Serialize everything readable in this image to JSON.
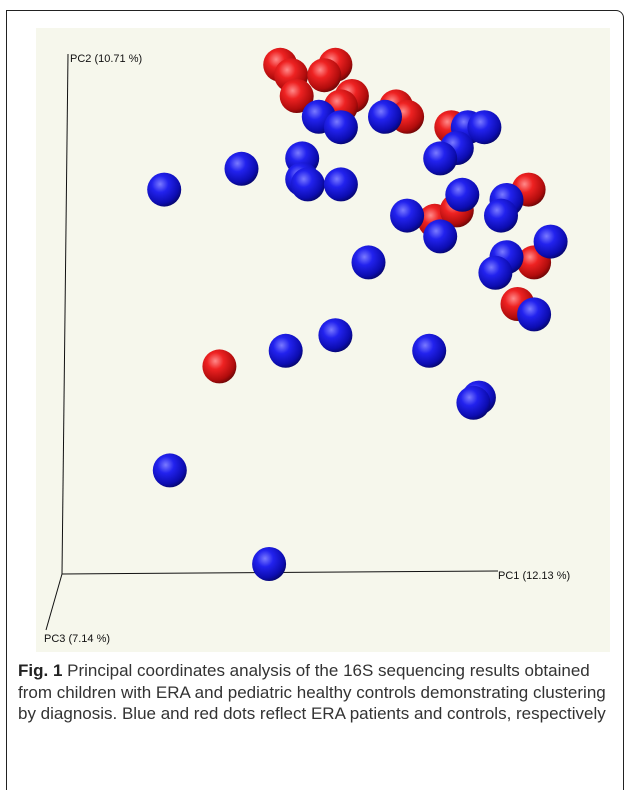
{
  "caption": {
    "label": "Fig. 1",
    "text": "Principal coordinates analysis of the 16S sequencing results obtained from children with ERA and pediatric healthy controls demonstrating clustering by diagnosis. Blue and red dots reflect ERA patients and controls, respectively"
  },
  "chart_data": {
    "type": "scatter",
    "dimensions": 3,
    "axes": {
      "x_label": "PC1 (12.13 %)",
      "y_label": "PC2 (10.71 %)",
      "z_label": "PC3 (7.14 %)"
    },
    "grid": false,
    "legend": "none",
    "colors": {
      "blue": "#1818e0",
      "red": "#e01818"
    },
    "points": [
      {
        "x": 0.66,
        "y": 0.96,
        "z": 0.0,
        "color": "red"
      },
      {
        "x": 0.7,
        "y": 0.94,
        "z": 0.0,
        "color": "red"
      },
      {
        "x": 0.72,
        "y": 0.9,
        "z": 0.0,
        "color": "red"
      },
      {
        "x": 0.86,
        "y": 0.96,
        "z": 0.0,
        "color": "red"
      },
      {
        "x": 0.82,
        "y": 0.94,
        "z": 0.0,
        "color": "red"
      },
      {
        "x": 0.92,
        "y": 0.9,
        "z": 0.0,
        "color": "red"
      },
      {
        "x": 0.88,
        "y": 0.88,
        "z": 0.0,
        "color": "red"
      },
      {
        "x": 1.08,
        "y": 0.88,
        "z": 0.0,
        "color": "red"
      },
      {
        "x": 1.12,
        "y": 0.86,
        "z": 0.0,
        "color": "red"
      },
      {
        "x": 1.28,
        "y": 0.84,
        "z": 0.0,
        "color": "red"
      },
      {
        "x": 1.56,
        "y": 0.72,
        "z": 0.0,
        "color": "red"
      },
      {
        "x": 1.22,
        "y": 0.66,
        "z": 0.0,
        "color": "red"
      },
      {
        "x": 1.3,
        "y": 0.68,
        "z": 0.0,
        "color": "red"
      },
      {
        "x": 1.58,
        "y": 0.58,
        "z": 0.0,
        "color": "red"
      },
      {
        "x": 1.52,
        "y": 0.5,
        "z": 0.0,
        "color": "red"
      },
      {
        "x": 0.44,
        "y": 0.38,
        "z": 0.0,
        "color": "red"
      },
      {
        "x": 0.8,
        "y": 0.86,
        "z": 0.0,
        "color": "blue"
      },
      {
        "x": 0.88,
        "y": 0.84,
        "z": 0.0,
        "color": "blue"
      },
      {
        "x": 1.04,
        "y": 0.86,
        "z": 0.0,
        "color": "blue"
      },
      {
        "x": 1.34,
        "y": 0.84,
        "z": 0.0,
        "color": "blue"
      },
      {
        "x": 1.4,
        "y": 0.84,
        "z": 0.0,
        "color": "blue"
      },
      {
        "x": 1.3,
        "y": 0.8,
        "z": 0.0,
        "color": "blue"
      },
      {
        "x": 1.24,
        "y": 0.78,
        "z": 0.0,
        "color": "blue"
      },
      {
        "x": 0.74,
        "y": 0.78,
        "z": 0.0,
        "color": "blue"
      },
      {
        "x": 0.52,
        "y": 0.76,
        "z": 0.0,
        "color": "blue"
      },
      {
        "x": 0.74,
        "y": 0.74,
        "z": 0.0,
        "color": "blue"
      },
      {
        "x": 0.76,
        "y": 0.73,
        "z": 0.0,
        "color": "blue"
      },
      {
        "x": 0.88,
        "y": 0.73,
        "z": 0.0,
        "color": "blue"
      },
      {
        "x": 0.24,
        "y": 0.72,
        "z": 0.0,
        "color": "blue"
      },
      {
        "x": 1.32,
        "y": 0.71,
        "z": 0.0,
        "color": "blue"
      },
      {
        "x": 1.48,
        "y": 0.7,
        "z": 0.0,
        "color": "blue"
      },
      {
        "x": 1.46,
        "y": 0.67,
        "z": 0.0,
        "color": "blue"
      },
      {
        "x": 1.12,
        "y": 0.67,
        "z": 0.0,
        "color": "blue"
      },
      {
        "x": 1.24,
        "y": 0.63,
        "z": 0.0,
        "color": "blue"
      },
      {
        "x": 1.64,
        "y": 0.62,
        "z": 0.0,
        "color": "blue"
      },
      {
        "x": 1.48,
        "y": 0.59,
        "z": 0.0,
        "color": "blue"
      },
      {
        "x": 1.44,
        "y": 0.56,
        "z": 0.0,
        "color": "blue"
      },
      {
        "x": 0.98,
        "y": 0.58,
        "z": 0.0,
        "color": "blue"
      },
      {
        "x": 1.58,
        "y": 0.48,
        "z": 0.0,
        "color": "blue"
      },
      {
        "x": 0.86,
        "y": 0.44,
        "z": 0.0,
        "color": "blue"
      },
      {
        "x": 0.68,
        "y": 0.41,
        "z": 0.0,
        "color": "blue"
      },
      {
        "x": 1.2,
        "y": 0.41,
        "z": 0.0,
        "color": "blue"
      },
      {
        "x": 1.38,
        "y": 0.32,
        "z": 0.0,
        "color": "blue"
      },
      {
        "x": 1.36,
        "y": 0.31,
        "z": 0.0,
        "color": "blue"
      },
      {
        "x": 0.26,
        "y": 0.18,
        "z": 0.0,
        "color": "blue"
      },
      {
        "x": 0.62,
        "y": 0.0,
        "z": 0.0,
        "color": "blue"
      }
    ]
  }
}
